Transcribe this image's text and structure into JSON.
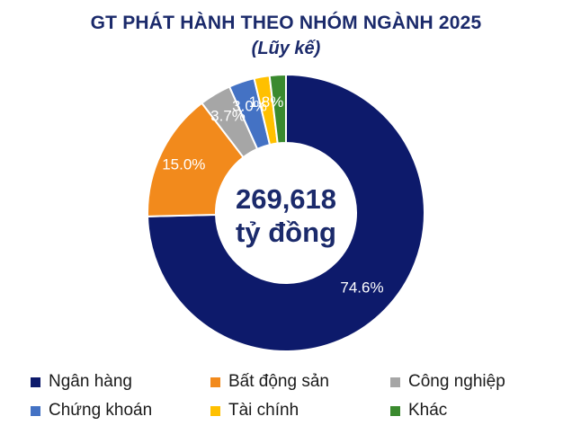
{
  "chart_data": {
    "type": "pie",
    "title": "GT PHÁT HÀNH THEO NHÓM NGÀNH 2025",
    "subtitle": "(Lũy kế)",
    "center_value": "269,618",
    "center_unit": "tỷ đồng",
    "categories": [
      "Ngân hàng",
      "Bất động sản",
      "Công nghiệp",
      "Chứng khoán",
      "Tài chính",
      "Khác"
    ],
    "values": [
      74.6,
      15.0,
      3.7,
      3.0,
      1.8,
      1.9
    ],
    "labels": [
      "74.6%",
      "15.0%",
      "3.7%",
      "3.0%",
      "1.8%",
      ""
    ],
    "colors": [
      "#0d1a6b",
      "#f28a1c",
      "#a6a6a6",
      "#4472c4",
      "#ffc000",
      "#3a8a2e"
    ],
    "legend_position": "bottom"
  }
}
